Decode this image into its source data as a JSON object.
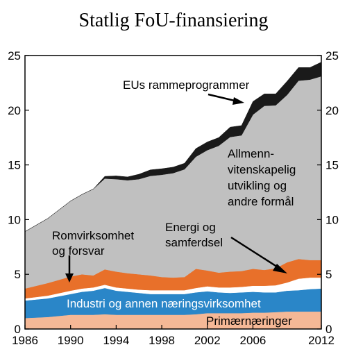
{
  "chart_data": {
    "type": "area",
    "title": "Statlig FoU-finansiering",
    "xlabel": "",
    "ylabel": "",
    "xlim": [
      1986,
      2012
    ],
    "ylim": [
      0,
      25
    ],
    "x_ticks": [
      "1986",
      "1990",
      "1994",
      "1998",
      "2002",
      "2006",
      "2012"
    ],
    "x_tick_values": [
      1986,
      1990,
      1994,
      1998,
      2002,
      2006,
      2012
    ],
    "y_ticks_left": [
      "0",
      "5",
      "10",
      "15",
      "20",
      "25"
    ],
    "y_ticks_right": [
      "0",
      "5",
      "10",
      "15",
      "20",
      "25"
    ],
    "y_tick_values": [
      0,
      5,
      10,
      15,
      20,
      25
    ],
    "x": [
      1986,
      1988,
      1990,
      1991,
      1992,
      1993,
      1994,
      1995,
      1996,
      1997,
      1998,
      1999,
      2000,
      2001,
      2002,
      2003,
      2004,
      2005,
      2006,
      2007,
      2008,
      2009,
      2010,
      2011,
      2012
    ],
    "stacking": "cumulative",
    "series": [
      {
        "name": "Primærnæringer",
        "color": "#f5b896",
        "values": [
          1.0,
          1.1,
          1.3,
          1.3,
          1.3,
          1.35,
          1.3,
          1.3,
          1.3,
          1.3,
          1.3,
          1.3,
          1.3,
          1.35,
          1.45,
          1.45,
          1.45,
          1.45,
          1.5,
          1.5,
          1.55,
          1.6,
          1.6,
          1.6,
          1.6
        ]
      },
      {
        "name": "Industri og annen næringsvirksomhet",
        "color": "#2a86c8",
        "values": [
          1.6,
          1.7,
          1.9,
          2.1,
          2.2,
          2.4,
          2.2,
          2.1,
          2.0,
          1.9,
          1.9,
          1.9,
          1.9,
          2.0,
          2.0,
          1.9,
          1.85,
          1.9,
          1.9,
          1.85,
          1.8,
          1.9,
          1.95,
          2.05,
          2.1
        ]
      },
      {
        "name": "",
        "color": "#ffffff",
        "values": [
          0.2,
          0.25,
          0.3,
          0.3,
          0.3,
          0.3,
          0.3,
          0.3,
          0.3,
          0.35,
          0.35,
          0.35,
          0.35,
          0.4,
          0.45,
          0.45,
          0.5,
          0.5,
          0.55,
          0.6,
          0.65,
          0.75,
          1.05,
          1.05,
          1.0
        ]
      },
      {
        "name": "Romvirksomhet og forsvar",
        "color": "#e8702a",
        "values": [
          0.2,
          0.2,
          0.2,
          0.2,
          0.2,
          0.2,
          0.15,
          0.15,
          0.15,
          0.15,
          0.15,
          0.15,
          0.15,
          0.15,
          0.15,
          0.15,
          0.15,
          0.15,
          0.15,
          0.15,
          0.15,
          0.15,
          0.1,
          0.1,
          0.1
        ]
      },
      {
        "name": "Energi og samferdsel",
        "color": "#e8702a",
        "values": [
          0.7,
          0.95,
          1.1,
          1.1,
          0.9,
          1.2,
          1.3,
          1.25,
          1.25,
          1.2,
          1.05,
          1.0,
          1.05,
          1.6,
          1.3,
          1.2,
          1.3,
          1.3,
          1.4,
          1.3,
          1.4,
          1.7,
          1.7,
          1.5,
          1.5
        ]
      },
      {
        "name": "Allmenn-vitenskapelig utvikling og andre formål",
        "color": "#c0c0c0",
        "values": [
          5.2,
          5.9,
          6.9,
          7.3,
          7.9,
          8.3,
          8.45,
          8.5,
          8.7,
          9.1,
          9.35,
          9.55,
          9.85,
          10.25,
          11.0,
          11.6,
          12.3,
          12.4,
          14.1,
          15.0,
          14.9,
          15.3,
          16.3,
          16.5,
          16.8
        ]
      },
      {
        "name": "EUs rammeprogrammer",
        "color": "#1a1a1a",
        "values": [
          0.0,
          0.0,
          0.0,
          0.0,
          0.0,
          0.2,
          0.3,
          0.3,
          0.45,
          0.55,
          0.55,
          0.55,
          0.55,
          0.75,
          0.75,
          0.75,
          0.9,
          0.9,
          1.2,
          1.1,
          1.05,
          1.25,
          1.2,
          1.1,
          1.3
        ]
      }
    ],
    "labels": {
      "eu": "EUs rammeprogrammer",
      "allmenn_1": "Allmenn-",
      "allmenn_2": "vitenskapelig",
      "allmenn_3": "utvikling og",
      "allmenn_4": "andre formål",
      "rom_1": "Romvirksomhet",
      "rom_2": "og forsvar",
      "energi_1": "Energi og",
      "energi_2": "samferdsel",
      "industri": "Industri og annen næringsvirksomhet",
      "primaer": "Primærnæringer"
    },
    "grid": false,
    "legend": "none"
  }
}
